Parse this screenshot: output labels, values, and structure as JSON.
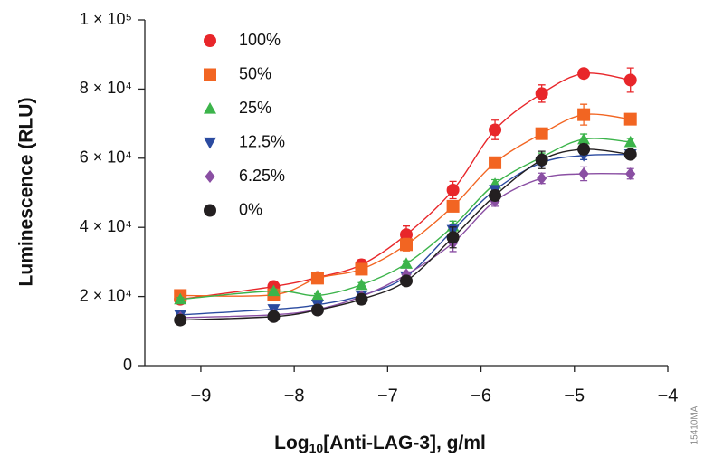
{
  "chart_data": {
    "type": "scatter",
    "y_label": "Luminescence (RLU)",
    "x_label_parts": [
      "Log",
      "10",
      "[Anti-LAG-3], g/ml"
    ],
    "figure_code": "15410MA",
    "x": [
      -9.22,
      -8.22,
      -7.75,
      -7.28,
      -6.8,
      -6.3,
      -5.85,
      -5.35,
      -4.9,
      -4.4
    ],
    "xlim": [
      -9.6,
      -4
    ],
    "xticks": [
      {
        "value": -9,
        "label": "−9"
      },
      {
        "value": -8,
        "label": "−8"
      },
      {
        "value": -7,
        "label": "−7"
      },
      {
        "value": -6,
        "label": "−6"
      },
      {
        "value": -5,
        "label": "−5"
      },
      {
        "value": -4,
        "label": "−4"
      }
    ],
    "ylim": [
      0,
      100000
    ],
    "yticks": [
      0,
      {
        "value": 20000,
        "label": "2 × 10⁴"
      },
      {
        "value": 40000,
        "label": "4 × 10⁴"
      },
      {
        "value": 60000,
        "label": "6 × 10⁴"
      },
      {
        "value": 80000,
        "label": "8 × 10⁴"
      },
      {
        "value": 100000,
        "label": "1 × 10⁵"
      }
    ],
    "legend": "upper left",
    "series": [
      {
        "name": "100%",
        "color": "#e8262a",
        "marker": "circle",
        "values": [
          19200,
          22900,
          25500,
          29200,
          37900,
          50800,
          68200,
          78700,
          84500,
          82600
        ],
        "errors": [
          700,
          600,
          800,
          1500,
          2500,
          2500,
          2800,
          2500,
          800,
          3500
        ]
      },
      {
        "name": "50%",
        "color": "#f26522",
        "marker": "square",
        "values": [
          20300,
          20500,
          25300,
          27900,
          35000,
          46100,
          58700,
          67100,
          72600,
          71300
        ],
        "errors": [
          500,
          500,
          500,
          800,
          1800,
          1500,
          900,
          1200,
          3000,
          1000
        ]
      },
      {
        "name": "25%",
        "color": "#3cb44b",
        "marker": "triangle",
        "values": [
          19200,
          21600,
          20300,
          23400,
          29500,
          40300,
          52600,
          60300,
          65500,
          64700
        ],
        "errors": [
          500,
          500,
          500,
          600,
          800,
          1500,
          1200,
          1200,
          1500,
          1000
        ]
      },
      {
        "name": "12.5%",
        "color": "#2b4ba0",
        "marker": "triangle-down",
        "values": [
          14700,
          16300,
          17600,
          20300,
          25800,
          39200,
          50800,
          58700,
          60800,
          61100
        ],
        "errors": [
          500,
          500,
          500,
          600,
          800,
          1500,
          1200,
          1200,
          1200,
          1000
        ]
      },
      {
        "name": "6.25%",
        "color": "#8a4fa3",
        "marker": "diamond",
        "values": [
          13900,
          14700,
          16300,
          20000,
          26300,
          35500,
          47600,
          54200,
          55500,
          55500
        ],
        "errors": [
          500,
          500,
          500,
          600,
          800,
          2500,
          1500,
          1500,
          2000,
          1500
        ]
      },
      {
        "name": "0%",
        "color": "#231f20",
        "marker": "circle",
        "values": [
          13200,
          14200,
          16100,
          19200,
          24500,
          37100,
          49200,
          59500,
          62600,
          61100
        ],
        "errors": [
          500,
          500,
          500,
          600,
          800,
          3000,
          1500,
          2500,
          1500,
          1000
        ]
      }
    ]
  }
}
